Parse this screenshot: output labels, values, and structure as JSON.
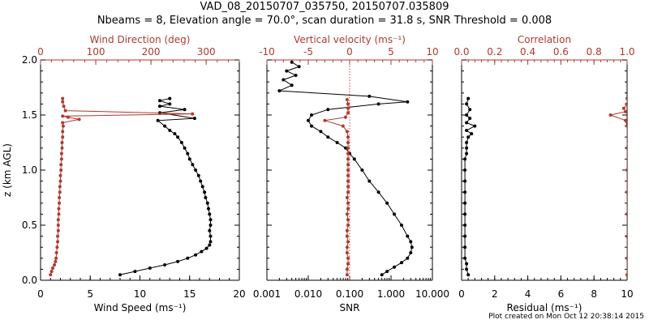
{
  "header": {
    "title_line1": "VAD_08_20150707_035750, 20150707.035809",
    "title_line2": "Nbeams = 8, Elevation angle = 70.0°, scan duration = 31.8 s, SNR Threshold = 0.008"
  },
  "footer": {
    "text": "Plot created on Mon Oct 12 20:38:14 2015"
  },
  "colors": {
    "primary": "#000000",
    "secondary": "#b03a2e",
    "dotted_line": "#d04040"
  },
  "chart_data": [
    {
      "type": "line",
      "name": "wind-profile",
      "ylabel": "z (km AGL)",
      "ylim": [
        0,
        2.0
      ],
      "yticks": [
        "0.0",
        "0.5",
        "1.0",
        "1.5",
        "2.0"
      ],
      "bottom_axis": {
        "label": "Wind Speed (ms⁻¹)",
        "lim": [
          0,
          20
        ],
        "ticks": [
          "0",
          "5",
          "10",
          "15",
          "20"
        ]
      },
      "top_axis": {
        "label": "Wind Direction (deg)",
        "lim": [
          0,
          360
        ],
        "ticks": [
          "0",
          "100",
          "200",
          "300"
        ]
      },
      "series": [
        {
          "name": "Wind Speed",
          "axis": "bottom",
          "color": "#000000",
          "points": [
            [
              8.0,
              0.05
            ],
            [
              9.5,
              0.08
            ],
            [
              11.0,
              0.11
            ],
            [
              12.5,
              0.14
            ],
            [
              13.8,
              0.17
            ],
            [
              14.8,
              0.2
            ],
            [
              15.6,
              0.23
            ],
            [
              16.2,
              0.26
            ],
            [
              16.7,
              0.29
            ],
            [
              17.0,
              0.32
            ],
            [
              17.1,
              0.35
            ],
            [
              17.1,
              0.4
            ],
            [
              17.0,
              0.45
            ],
            [
              17.1,
              0.5
            ],
            [
              17.1,
              0.55
            ],
            [
              17.0,
              0.6
            ],
            [
              16.9,
              0.65
            ],
            [
              16.8,
              0.7
            ],
            [
              16.6,
              0.75
            ],
            [
              16.5,
              0.8
            ],
            [
              16.3,
              0.85
            ],
            [
              16.1,
              0.9
            ],
            [
              15.9,
              0.95
            ],
            [
              15.6,
              1.0
            ],
            [
              15.3,
              1.05
            ],
            [
              15.0,
              1.1
            ],
            [
              14.8,
              1.15
            ],
            [
              14.5,
              1.2
            ],
            [
              14.2,
              1.25
            ],
            [
              13.8,
              1.3
            ],
            [
              13.5,
              1.33
            ],
            [
              13.0,
              1.36
            ],
            [
              12.5,
              1.4
            ],
            [
              11.8,
              1.45
            ],
            [
              15.5,
              1.47
            ],
            [
              12.0,
              1.52
            ],
            [
              14.5,
              1.55
            ],
            [
              12.0,
              1.58
            ],
            [
              13.0,
              1.6
            ],
            [
              12.0,
              1.63
            ],
            [
              13.0,
              1.65
            ]
          ]
        },
        {
          "name": "Wind Direction",
          "axis": "top",
          "color": "#b03a2e",
          "points": [
            [
              18,
              0.05
            ],
            [
              20,
              0.08
            ],
            [
              22,
              0.11
            ],
            [
              25,
              0.14
            ],
            [
              27,
              0.17
            ],
            [
              28,
              0.2
            ],
            [
              29,
              0.25
            ],
            [
              30,
              0.3
            ],
            [
              31,
              0.35
            ],
            [
              31,
              0.4
            ],
            [
              32,
              0.45
            ],
            [
              32,
              0.5
            ],
            [
              32,
              0.55
            ],
            [
              33,
              0.6
            ],
            [
              33,
              0.65
            ],
            [
              34,
              0.7
            ],
            [
              34,
              0.75
            ],
            [
              35,
              0.8
            ],
            [
              35,
              0.85
            ],
            [
              36,
              0.9
            ],
            [
              36,
              0.95
            ],
            [
              37,
              1.0
            ],
            [
              37,
              1.05
            ],
            [
              38,
              1.1
            ],
            [
              38,
              1.15
            ],
            [
              39,
              1.2
            ],
            [
              39,
              1.25
            ],
            [
              40,
              1.3
            ],
            [
              40,
              1.35
            ],
            [
              41,
              1.4
            ],
            [
              40,
              1.43
            ],
            [
              70,
              1.46
            ],
            [
              50,
              1.48
            ],
            [
              40,
              1.49
            ],
            [
              275,
              1.51
            ],
            [
              45,
              1.54
            ],
            [
              42,
              1.58
            ],
            [
              40,
              1.62
            ],
            [
              40,
              1.65
            ]
          ]
        }
      ]
    },
    {
      "type": "line",
      "name": "velocity-snr-profile",
      "ylim": [
        0,
        2.0
      ],
      "bottom_axis": {
        "label": "SNR",
        "scale": "log",
        "lim": [
          0.001,
          10
        ],
        "ticks": [
          "0.001",
          "0.010",
          "0.100",
          "1.000",
          "10.000"
        ]
      },
      "top_axis": {
        "label": "Vertical velocity (ms⁻¹)",
        "lim": [
          -10,
          10
        ],
        "ticks": [
          "-10",
          "-5",
          "0",
          "5",
          "10"
        ]
      },
      "reference_line": {
        "axis": "top",
        "value": 0
      },
      "series": [
        {
          "name": "SNR",
          "axis": "bottom",
          "color": "#000000",
          "points": [
            [
              0.6,
              0.05
            ],
            [
              0.8,
              0.08
            ],
            [
              1.2,
              0.12
            ],
            [
              1.8,
              0.16
            ],
            [
              2.5,
              0.2
            ],
            [
              3.0,
              0.25
            ],
            [
              3.2,
              0.3
            ],
            [
              3.0,
              0.35
            ],
            [
              2.5,
              0.4
            ],
            [
              1.8,
              0.5
            ],
            [
              1.2,
              0.6
            ],
            [
              0.8,
              0.7
            ],
            [
              0.5,
              0.8
            ],
            [
              0.3,
              0.9
            ],
            [
              0.2,
              1.0
            ],
            [
              0.13,
              1.1
            ],
            [
              0.1,
              1.15
            ],
            [
              0.08,
              1.2
            ],
            [
              0.05,
              1.25
            ],
            [
              0.03,
              1.3
            ],
            [
              0.02,
              1.35
            ],
            [
              0.012,
              1.4
            ],
            [
              0.01,
              1.45
            ],
            [
              0.012,
              1.5
            ],
            [
              0.03,
              1.55
            ],
            [
              0.5,
              1.6
            ],
            [
              2.5,
              1.62
            ],
            [
              0.3,
              1.67
            ],
            [
              0.002,
              1.72
            ],
            [
              0.004,
              1.77
            ],
            [
              0.0025,
              1.82
            ],
            [
              0.005,
              1.86
            ],
            [
              0.003,
              1.9
            ],
            [
              0.006,
              1.94
            ],
            [
              0.004,
              1.98
            ]
          ]
        },
        {
          "name": "Vertical velocity",
          "axis": "top",
          "color": "#b03a2e",
          "points": [
            [
              -0.3,
              0.05
            ],
            [
              -0.3,
              0.1
            ],
            [
              -0.2,
              0.15
            ],
            [
              -0.2,
              0.2
            ],
            [
              -0.3,
              0.25
            ],
            [
              -0.3,
              0.3
            ],
            [
              -0.2,
              0.35
            ],
            [
              -0.3,
              0.4
            ],
            [
              -0.3,
              0.45
            ],
            [
              -0.2,
              0.5
            ],
            [
              -0.2,
              0.55
            ],
            [
              -0.3,
              0.6
            ],
            [
              -0.2,
              0.65
            ],
            [
              -0.2,
              0.7
            ],
            [
              -0.3,
              0.75
            ],
            [
              -0.2,
              0.8
            ],
            [
              -0.2,
              0.85
            ],
            [
              -0.2,
              0.9
            ],
            [
              -0.2,
              0.95
            ],
            [
              -0.2,
              1.0
            ],
            [
              -0.2,
              1.05
            ],
            [
              -0.2,
              1.1
            ],
            [
              -0.2,
              1.15
            ],
            [
              -0.2,
              1.2
            ],
            [
              -0.2,
              1.25
            ],
            [
              -0.2,
              1.3
            ],
            [
              -0.3,
              1.35
            ],
            [
              -0.8,
              1.4
            ],
            [
              -3.0,
              1.45
            ],
            [
              -0.5,
              1.48
            ],
            [
              -0.2,
              1.52
            ],
            [
              -0.2,
              1.56
            ],
            [
              -0.2,
              1.6
            ],
            [
              -0.3,
              1.64
            ]
          ]
        }
      ]
    },
    {
      "type": "line",
      "name": "residual-correlation-profile",
      "ylim": [
        0,
        2.0
      ],
      "bottom_axis": {
        "label": "Residual (ms⁻¹)",
        "lim": [
          0,
          10
        ],
        "ticks": [
          "0",
          "2",
          "4",
          "6",
          "8",
          "10"
        ]
      },
      "top_axis": {
        "label": "Correlation",
        "lim": [
          0,
          1.0
        ],
        "ticks": [
          "0.0",
          "0.2",
          "0.4",
          "0.6",
          "0.8",
          "1.0"
        ]
      },
      "series": [
        {
          "name": "Residual",
          "axis": "bottom",
          "color": "#000000",
          "points": [
            [
              0.4,
              0.05
            ],
            [
              0.3,
              0.1
            ],
            [
              0.3,
              0.15
            ],
            [
              0.2,
              0.2
            ],
            [
              0.2,
              0.3
            ],
            [
              0.2,
              0.4
            ],
            [
              0.2,
              0.5
            ],
            [
              0.2,
              0.6
            ],
            [
              0.2,
              0.7
            ],
            [
              0.2,
              0.8
            ],
            [
              0.2,
              0.9
            ],
            [
              0.2,
              1.0
            ],
            [
              0.2,
              1.1
            ],
            [
              0.3,
              1.15
            ],
            [
              0.3,
              1.2
            ],
            [
              0.3,
              1.25
            ],
            [
              0.4,
              1.3
            ],
            [
              0.6,
              1.33
            ],
            [
              0.3,
              1.36
            ],
            [
              0.8,
              1.4
            ],
            [
              0.3,
              1.43
            ],
            [
              0.5,
              1.47
            ],
            [
              0.3,
              1.5
            ],
            [
              0.5,
              1.55
            ],
            [
              0.3,
              1.6
            ],
            [
              0.4,
              1.65
            ]
          ]
        },
        {
          "name": "Correlation",
          "axis": "top",
          "color": "#b03a2e",
          "points": [
            [
              1.0,
              0.05
            ],
            [
              1.0,
              0.2
            ],
            [
              1.0,
              0.4
            ],
            [
              1.0,
              0.6
            ],
            [
              1.0,
              0.8
            ],
            [
              1.0,
              1.0
            ],
            [
              1.0,
              1.2
            ],
            [
              1.0,
              1.4
            ],
            [
              0.99,
              1.45
            ],
            [
              0.9,
              1.5
            ],
            [
              0.99,
              1.53
            ],
            [
              0.98,
              1.56
            ],
            [
              1.0,
              1.6
            ],
            [
              1.0,
              1.65
            ]
          ]
        }
      ]
    }
  ]
}
